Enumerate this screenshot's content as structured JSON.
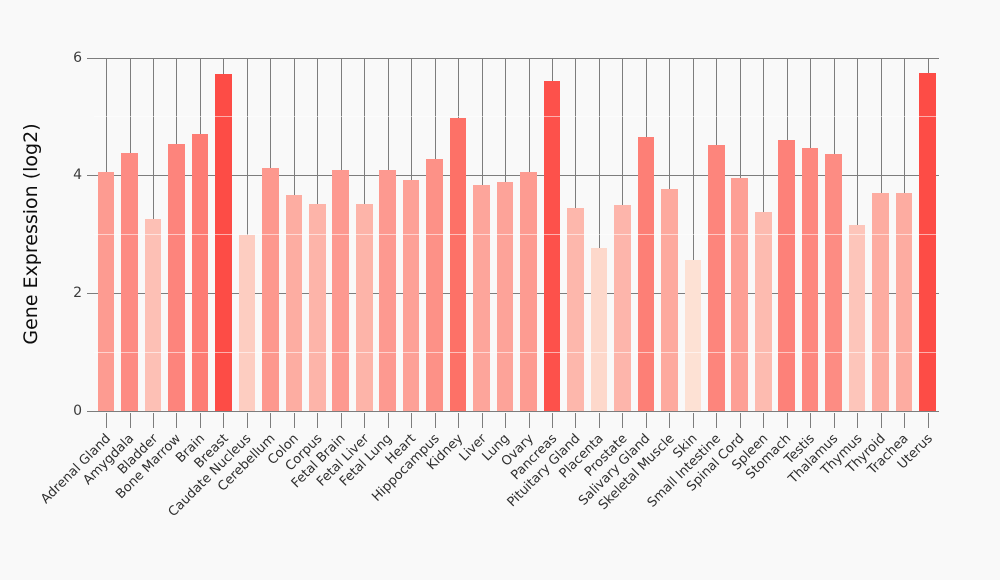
{
  "chart_data": {
    "type": "bar",
    "title": "",
    "ylabel": "Gene Expression (log2)",
    "xlabel": "",
    "ylim": [
      0,
      6
    ],
    "yticks": [
      0,
      2,
      4,
      6
    ],
    "minor_gridlines": [
      1,
      3,
      5
    ],
    "grid": "on",
    "legend": "none",
    "background_color": "#f9f9f9",
    "gridline_color": "#7d7d7d",
    "minor_gridline_color": "rgba(255,255,255,0.55)",
    "categories": [
      "Adrenal Gland",
      "Amygdala",
      "Bladder",
      "Bone Marrow",
      "Brain",
      "Breast",
      "Caudate Nucleus",
      "Cerebellum",
      "Colon",
      "Corpus",
      "Fetal Brain",
      "Fetal Liver",
      "Fetal Lung",
      "Heart",
      "Hippocampus",
      "Kidney",
      "Liver",
      "Lung",
      "Ovary",
      "Pancreas",
      "Pituitary Gland",
      "Placenta",
      "Prostate",
      "Salivary Gland",
      "Skeletal Muscle",
      "Skin",
      "Small Intestine",
      "Spinal Cord",
      "Spleen",
      "Stomach",
      "Testis",
      "Thalamus",
      "Thymus",
      "Thyroid",
      "Trachea",
      "Uterus"
    ],
    "values": [
      4.05,
      4.38,
      3.26,
      4.53,
      4.71,
      5.72,
      2.98,
      4.12,
      3.67,
      3.52,
      4.09,
      3.52,
      4.09,
      3.92,
      4.27,
      4.98,
      3.84,
      3.89,
      4.05,
      5.6,
      3.45,
      2.76,
      3.49,
      4.65,
      3.76,
      2.56,
      4.52,
      3.96,
      3.37,
      4.6,
      4.46,
      4.36,
      3.15,
      3.7,
      3.7,
      5.73
    ],
    "bar_colors": [
      "#fd9b91",
      "#fd8b83",
      "#fdc0b5",
      "#fd847c",
      "#fd7c74",
      "#fd4c46",
      "#fdcdc1",
      "#fd988e",
      "#fdada2",
      "#fdb4a9",
      "#fd9990",
      "#fdb4a9",
      "#fd9990",
      "#fda197",
      "#fd9187",
      "#fd7167",
      "#fda59b",
      "#fda399",
      "#fd9b91",
      "#fd514b",
      "#fdb7ac",
      "#fdd8cb",
      "#fdb5ab",
      "#fd7f76",
      "#fda99e",
      "#fde1d4",
      "#fd857c",
      "#fd9f95",
      "#fdbbb0",
      "#fd8179",
      "#fd887f",
      "#fd8c83",
      "#fdc5ba",
      "#fdaca1",
      "#fdaca1",
      "#fd4c46"
    ]
  }
}
